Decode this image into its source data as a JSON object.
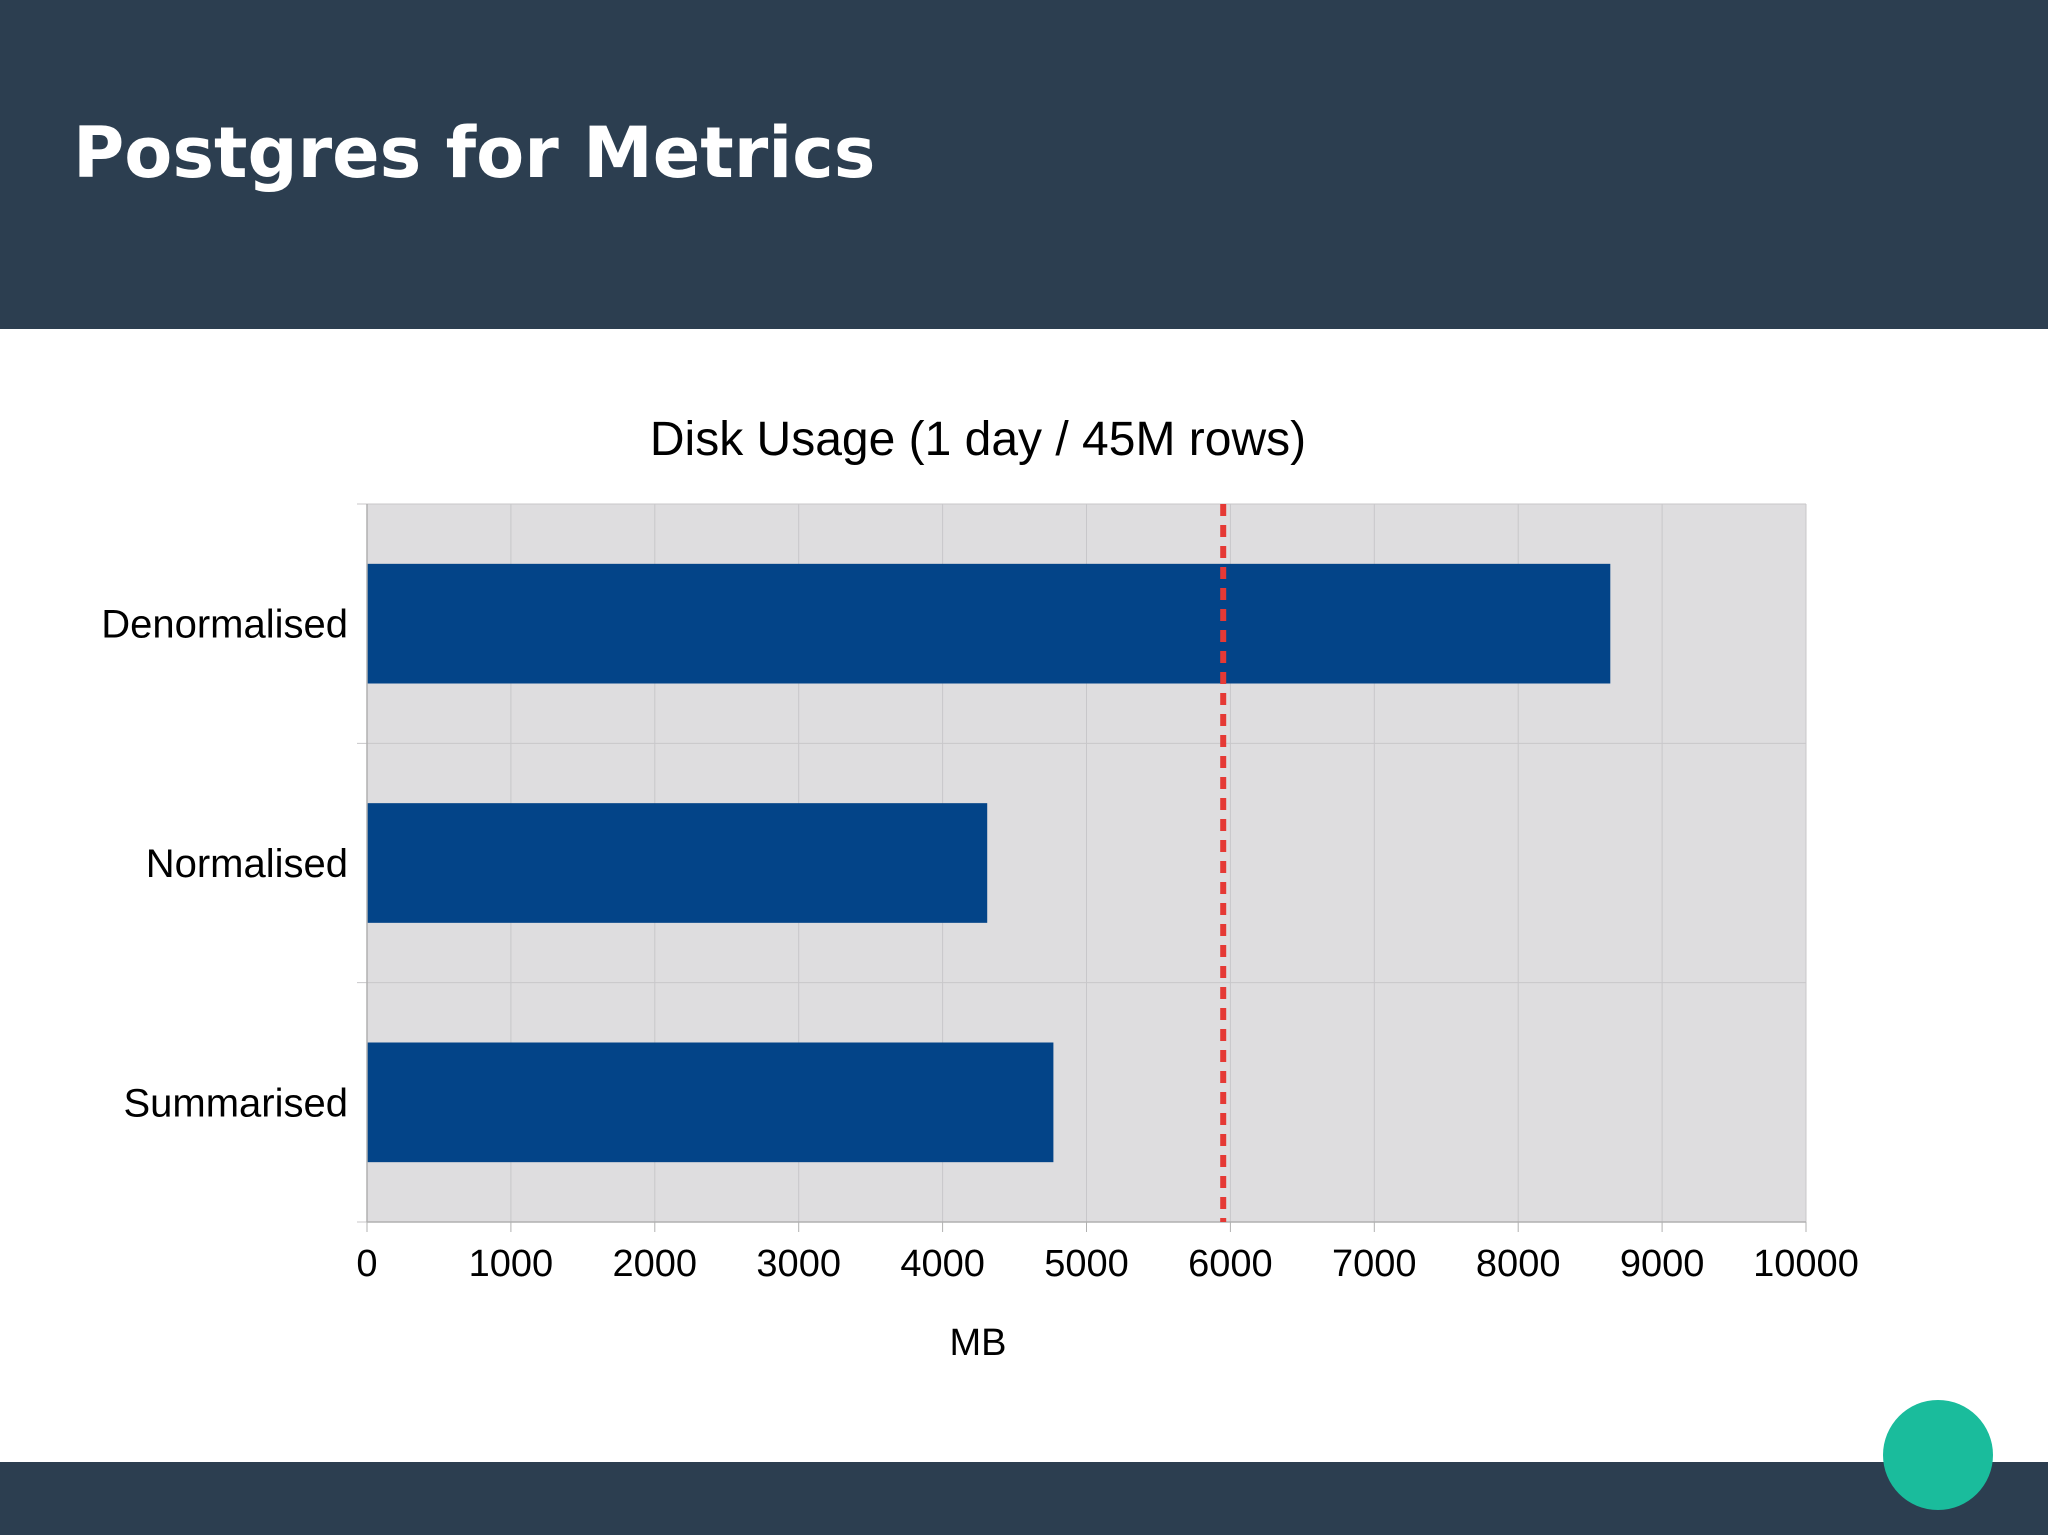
{
  "slide": {
    "title": "Postgres for Metrics"
  },
  "colors": {
    "header_bg": "#2c3e50",
    "bar": "#034488",
    "plot_bg": "#dedddf",
    "reference_line": "#e53935",
    "accent_dot": "#1abc9c"
  },
  "chart_data": {
    "type": "bar",
    "orientation": "horizontal",
    "title": "Disk Usage (1 day / 45M rows)",
    "xlabel": "MB",
    "ylabel": "",
    "categories": [
      "Denormalised",
      "Normalised",
      "Summarised"
    ],
    "values": [
      8640,
      4310,
      4770
    ],
    "xlim": [
      0,
      10000
    ],
    "xticks": [
      "0",
      "1000",
      "2000",
      "3000",
      "4000",
      "5000",
      "6000",
      "7000",
      "8000",
      "9000",
      "10000"
    ],
    "reference_line": {
      "value": 5950,
      "style": "dashed"
    },
    "grid": true,
    "legend": "none"
  }
}
